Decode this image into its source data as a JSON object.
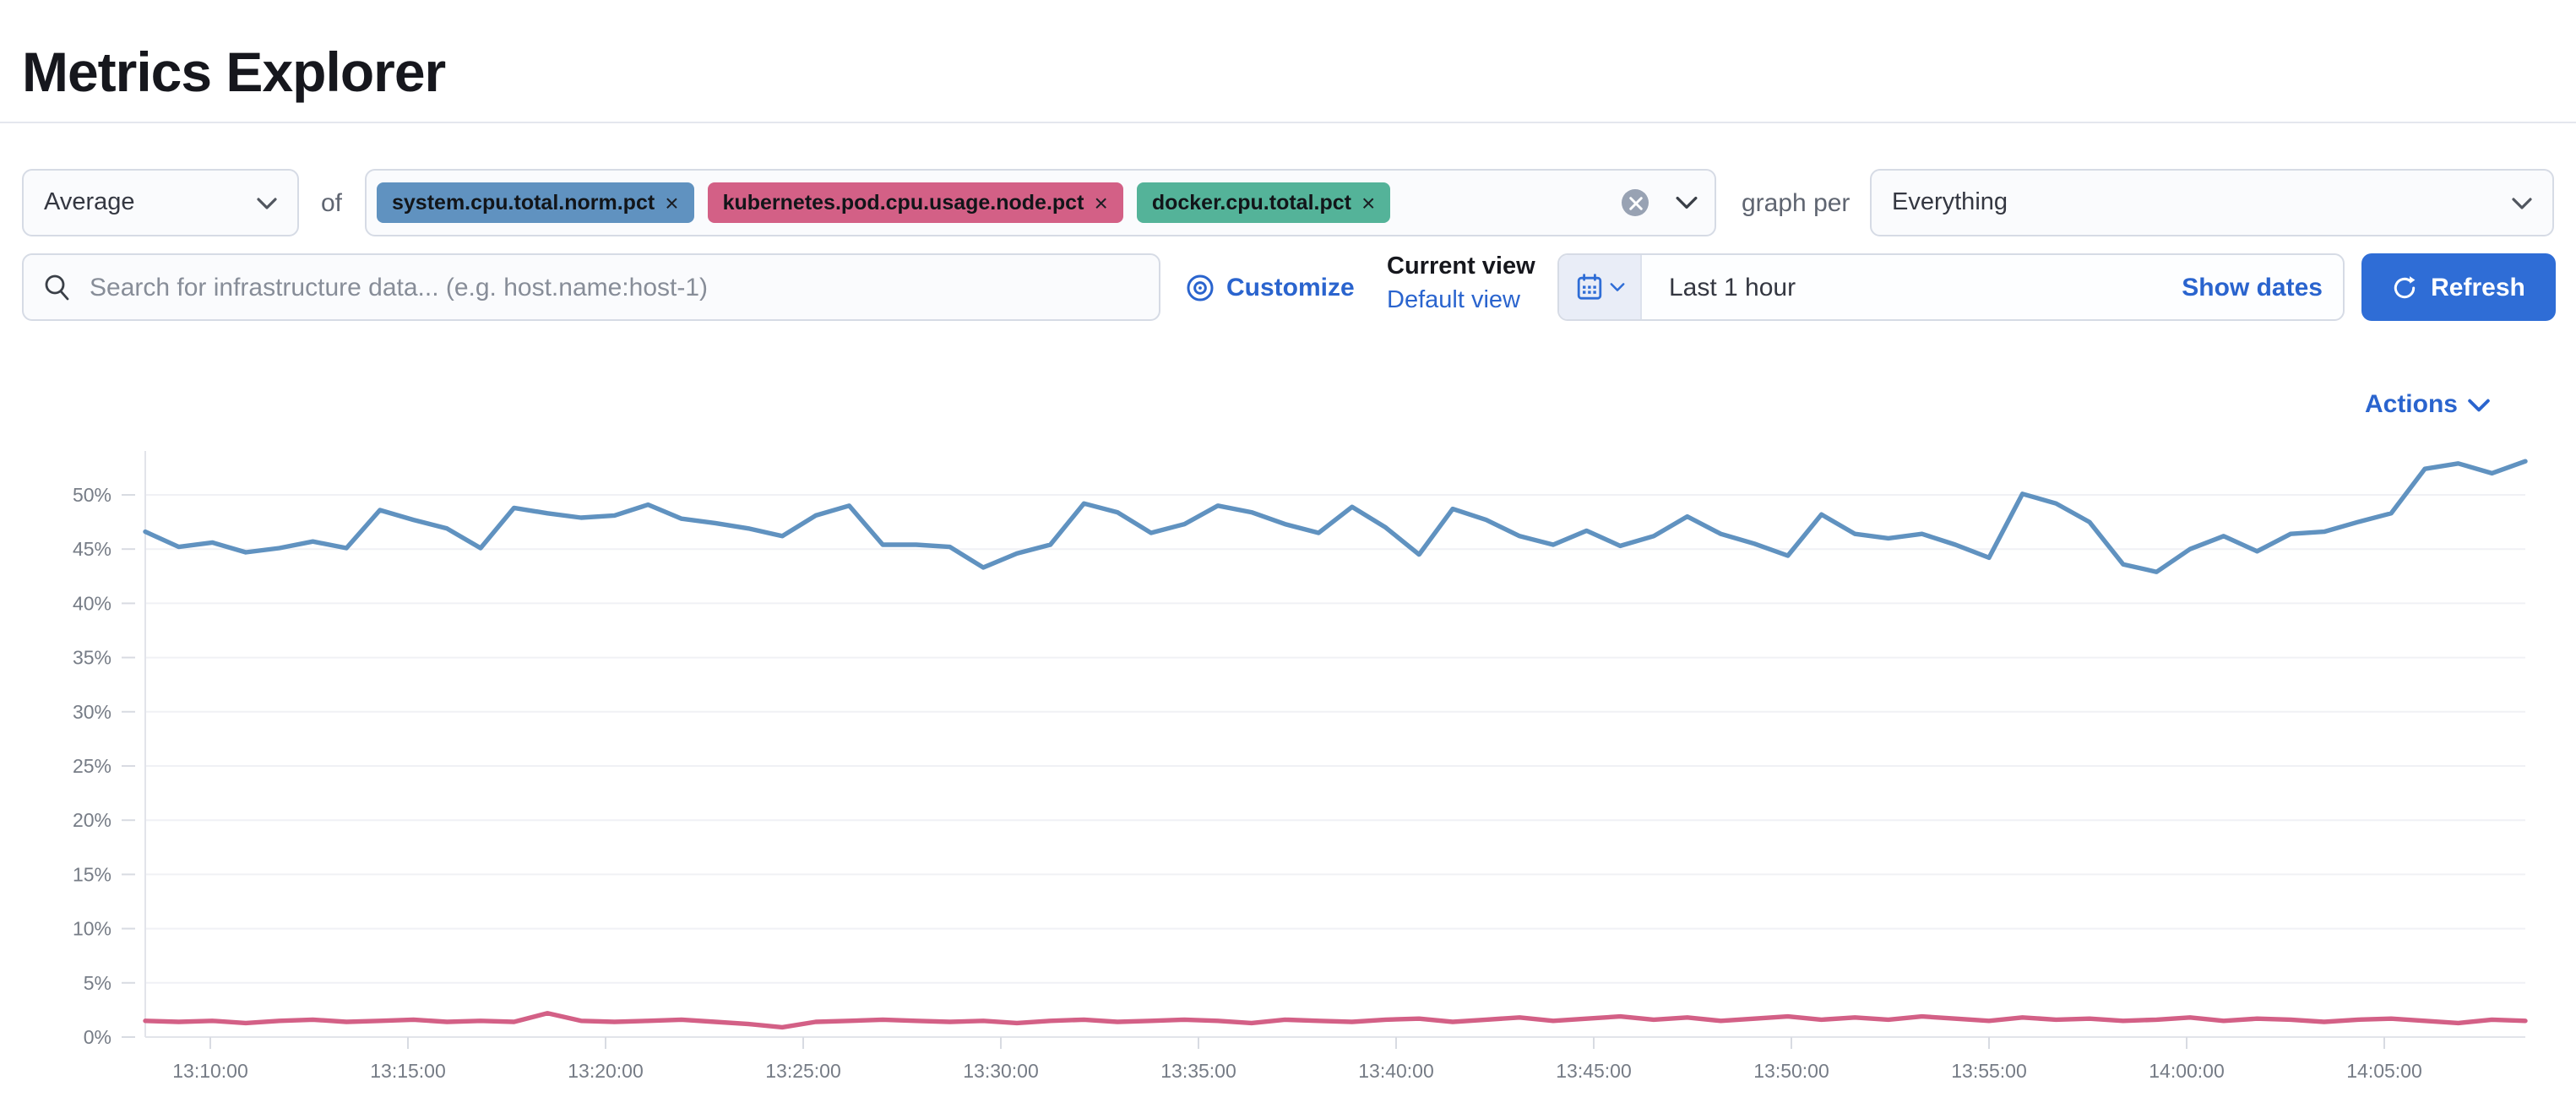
{
  "page": {
    "title": "Metrics Explorer"
  },
  "toolbar": {
    "aggregation": {
      "value": "Average"
    },
    "of_label": "of",
    "metrics": [
      {
        "label": "system.cpu.total.norm.pct",
        "color": "#6092C0"
      },
      {
        "label": "kubernetes.pod.cpu.usage.node.pct",
        "color": "#D36086"
      },
      {
        "label": "docker.cpu.total.pct",
        "color": "#54B399"
      }
    ],
    "graph_per_label": "graph per",
    "group_by": {
      "value": "Everything"
    }
  },
  "searchbar": {
    "placeholder": "Search for infrastructure data... (e.g. host.name:host-1)",
    "customize_label": "Customize",
    "current_view_label": "Current view",
    "view_name": "Default view",
    "time_range": "Last 1 hour",
    "show_dates_label": "Show dates",
    "refresh_label": "Refresh"
  },
  "chart_section": {
    "actions_label": "Actions"
  },
  "colors": {
    "accent_link": "#2A64CE",
    "primary_button": "#2F6DD6",
    "series_blue": "#6092C0",
    "series_pink": "#D36086",
    "tag_green": "#54B399",
    "grid": "#F0F1F5",
    "axis": "#E2E4EA"
  },
  "chart_data": {
    "type": "line",
    "title": "",
    "xlabel": "",
    "ylabel": "",
    "ylim": [
      0,
      54
    ],
    "grid": true,
    "legend": "none",
    "x_ticks": [
      "13:10:00",
      "13:15:00",
      "13:20:00",
      "13:25:00",
      "13:30:00",
      "13:35:00",
      "13:40:00",
      "13:45:00",
      "13:50:00",
      "13:55:00",
      "14:00:00",
      "14:05:00"
    ],
    "y_ticks": [
      "0%",
      "5%",
      "10%",
      "15%",
      "20%",
      "25%",
      "30%",
      "35%",
      "40%",
      "45%",
      "50%"
    ],
    "y_tick_values": [
      0,
      5,
      10,
      15,
      20,
      25,
      30,
      35,
      40,
      45,
      50
    ],
    "series": [
      {
        "name": "system.cpu.total.norm.pct (avg)",
        "color": "#6092C0",
        "unit": "%",
        "values": [
          46.6,
          45.2,
          45.6,
          44.7,
          45.1,
          45.7,
          45.1,
          48.6,
          47.7,
          46.9,
          45.1,
          48.8,
          48.3,
          47.9,
          48.1,
          49.1,
          47.8,
          47.4,
          46.9,
          46.2,
          48.1,
          49.0,
          45.4,
          45.4,
          45.2,
          43.3,
          44.6,
          45.4,
          49.2,
          48.4,
          46.5,
          47.3,
          49.0,
          48.4,
          47.3,
          46.5,
          48.9,
          47.0,
          44.5,
          48.7,
          47.7,
          46.2,
          45.4,
          46.7,
          45.3,
          46.2,
          48.0,
          46.4,
          45.5,
          44.4,
          48.2,
          46.4,
          46.0,
          46.4,
          45.4,
          44.2,
          50.1,
          49.2,
          47.5,
          43.6,
          42.9,
          45.0,
          46.2,
          44.8,
          46.4,
          46.6,
          47.5,
          48.3,
          52.4,
          52.9,
          52.0,
          53.1
        ]
      },
      {
        "name": "kubernetes.pod.cpu.usage.node.pct (avg)",
        "color": "#D36086",
        "unit": "%",
        "values": [
          1.5,
          1.4,
          1.5,
          1.3,
          1.5,
          1.6,
          1.4,
          1.5,
          1.6,
          1.4,
          1.5,
          1.4,
          2.2,
          1.5,
          1.4,
          1.5,
          1.6,
          1.4,
          1.2,
          0.9,
          1.4,
          1.5,
          1.6,
          1.5,
          1.4,
          1.5,
          1.3,
          1.5,
          1.6,
          1.4,
          1.5,
          1.6,
          1.5,
          1.3,
          1.6,
          1.5,
          1.4,
          1.6,
          1.7,
          1.4,
          1.6,
          1.8,
          1.5,
          1.7,
          1.9,
          1.6,
          1.8,
          1.5,
          1.7,
          1.9,
          1.6,
          1.8,
          1.6,
          1.9,
          1.7,
          1.5,
          1.8,
          1.6,
          1.7,
          1.5,
          1.6,
          1.8,
          1.5,
          1.7,
          1.6,
          1.4,
          1.6,
          1.7,
          1.5,
          1.3,
          1.6,
          1.5
        ]
      }
    ]
  }
}
